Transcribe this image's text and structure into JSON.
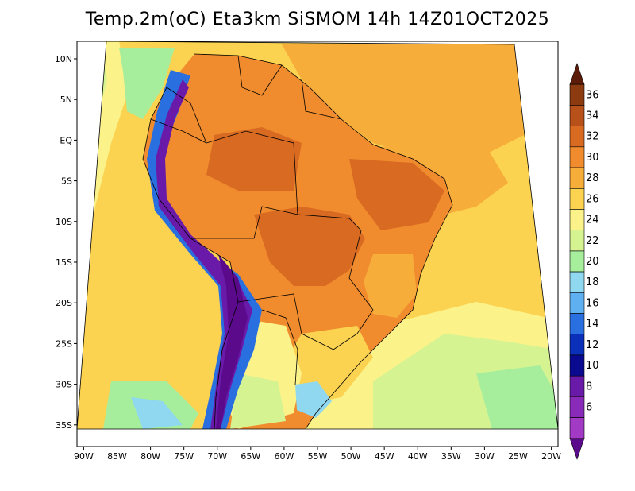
{
  "title": "Temp.2m(oC) Eta3km SiSMOM 14h 14Z01OCT2025",
  "map": {
    "lon_labels": [
      "90W",
      "85W",
      "80W",
      "75W",
      "70W",
      "65W",
      "60W",
      "55W",
      "50W",
      "45W",
      "40W",
      "35W",
      "30W",
      "25W",
      "20W"
    ],
    "lat_labels": [
      "10N",
      "5N",
      "EQ",
      "5S",
      "10S",
      "15S",
      "20S",
      "25S",
      "30S",
      "35S"
    ],
    "lon_range": [
      -91,
      -19
    ],
    "lat_range": [
      12,
      -38
    ]
  },
  "colorbar": {
    "labels": [
      "36",
      "34",
      "32",
      "30",
      "28",
      "26",
      "24",
      "22",
      "20",
      "18",
      "16",
      "14",
      "12",
      "10",
      "8",
      "6"
    ],
    "colors": [
      "#5a1c08",
      "#8c3a10",
      "#b8501a",
      "#d96a22",
      "#f08c2e",
      "#f7ad3a",
      "#fbd350",
      "#fbf28a",
      "#d6f392",
      "#a6ee9c",
      "#8fd8f0",
      "#5fb0f0",
      "#2a6fe0",
      "#0a2fb8",
      "#0a0a90",
      "#6a1aa8",
      "#8a2ab8",
      "#a23ac6",
      "#5a0a8a"
    ]
  },
  "colors": {
    "ocean": "#fbd350",
    "land_warm": "#f08c2e",
    "land_hot": "#d96a22",
    "andes_cold": "#5a1aa0",
    "border": "#000000"
  }
}
